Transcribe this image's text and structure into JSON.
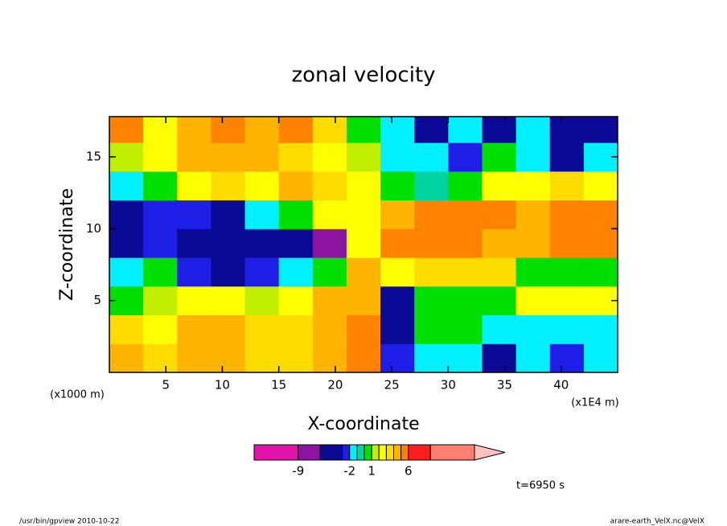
{
  "chart_data": {
    "type": "contourf",
    "title": "zonal velocity",
    "xlabel": "X-coordinate",
    "ylabel": "Z-coordinate",
    "x_unit": "(x1E4 m)",
    "y_unit": "(x1000 m)",
    "time_label": "t=6950 s",
    "footer_left": "/usr/bin/gpview  2010-10-22",
    "footer_right": "arare-earth_VelX.nc@VelX",
    "xlim": [
      0,
      45
    ],
    "ylim": [
      0,
      17.8
    ],
    "xticks": [
      5,
      10,
      15,
      20,
      25,
      30,
      35,
      40
    ],
    "yticks": [
      5,
      10,
      15
    ],
    "x": [
      1.5,
      4.5,
      7.5,
      10.5,
      13.5,
      16.5,
      19.5,
      22.5,
      25.5,
      28.5,
      31.5,
      34.5,
      37.5,
      40.5,
      43.5
    ],
    "y": [
      1,
      3,
      5,
      7,
      9,
      11,
      13,
      15,
      17
    ],
    "values": [
      [
        4.5,
        3,
        4.5,
        4.5,
        3.5,
        3.5,
        4.5,
        5.5,
        -3,
        -1.5,
        -1.5,
        -4,
        -1.5,
        -3,
        -1.5
      ],
      [
        3,
        2.5,
        4,
        4.5,
        3,
        3,
        4.5,
        5.5,
        -4,
        0.5,
        0.5,
        -1.5,
        -1.5,
        -1.5,
        -1.5
      ],
      [
        0.5,
        1.5,
        2.5,
        2.5,
        1.5,
        2.5,
        4.5,
        4.5,
        -4,
        0.5,
        0.5,
        0.5,
        2.5,
        2.5,
        2.5
      ],
      [
        -1.5,
        0.5,
        -2.5,
        -4,
        -2.5,
        -1.5,
        0.5,
        4,
        2.5,
        3,
        3.5,
        3,
        0.5,
        0.5,
        0.5
      ],
      [
        -5,
        -3,
        -4,
        -5,
        -5.5,
        -5.5,
        -6.5,
        2,
        5.5,
        5.5,
        5.5,
        4.5,
        4.5,
        5.5,
        5
      ],
      [
        -5,
        -3,
        -2.5,
        -4,
        -1.5,
        0.5,
        2,
        2.5,
        4.5,
        5,
        5.5,
        5,
        4.5,
        5.5,
        5
      ],
      [
        -1.5,
        0.5,
        2.5,
        3,
        2.5,
        4,
        3,
        2,
        0.5,
        -0.5,
        0.5,
        2.5,
        2.5,
        3,
        2.5
      ],
      [
        1.5,
        2.5,
        4.5,
        4.5,
        4,
        3.5,
        2.5,
        1.5,
        -1.5,
        -1.5,
        -2.5,
        0.5,
        -1.5,
        -4,
        -1.5
      ],
      [
        5,
        2.5,
        4.5,
        5,
        4.5,
        5,
        3,
        0.5,
        -2,
        -4,
        -1.5,
        -5,
        -1.5,
        -4,
        -5
      ]
    ],
    "levels": [
      -15,
      -9,
      -6,
      -3,
      -2,
      -1,
      0,
      1,
      2,
      3,
      4,
      5,
      6,
      9,
      15
    ],
    "colors": [
      "#e014a8",
      "#8c14a0",
      "#0a0a96",
      "#1e1ee6",
      "#00f0ff",
      "#00d2a0",
      "#00e000",
      "#c0f000",
      "#ffff00",
      "#ffdc00",
      "#ffb400",
      "#ff8200",
      "#ff1e1e",
      "#ff8070",
      "#ffc0c0"
    ],
    "colorbar_ticks": [
      -9,
      -2,
      1,
      6
    ]
  }
}
